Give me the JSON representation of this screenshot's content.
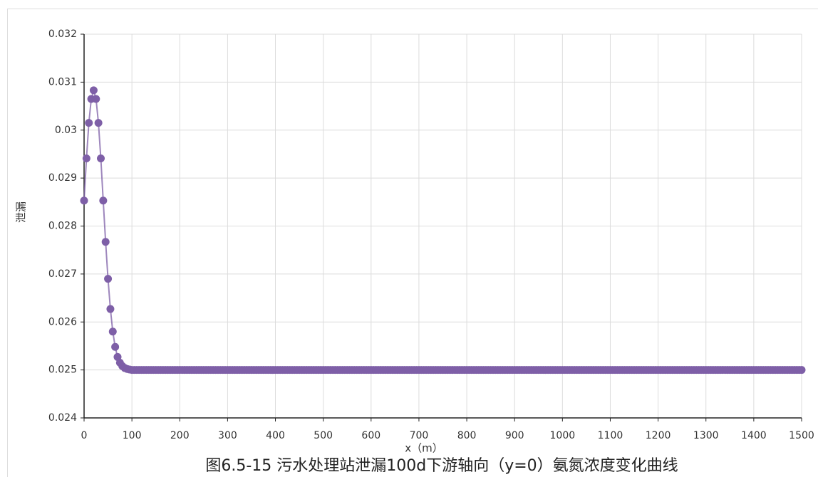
{
  "chart_data": {
    "type": "scatter_line",
    "y_label": "泄漏",
    "x_label": "x（m）",
    "caption": "图6.5-15  污水处理站泄漏100d下游轴向（y=0）氨氮浓度变化曲线",
    "color": "#7e5fa7",
    "grid": true,
    "xlim": [
      0,
      1500
    ],
    "xticks": [
      0,
      100,
      200,
      300,
      400,
      500,
      600,
      700,
      800,
      900,
      1000,
      1100,
      1200,
      1300,
      1400,
      1500
    ],
    "ylim": [
      0.024,
      0.032
    ],
    "yticks": [
      0.024,
      0.025,
      0.026,
      0.027,
      0.028,
      0.029,
      0.03,
      0.031,
      0.032
    ],
    "x": [
      0,
      5,
      10,
      15,
      20,
      25,
      30,
      35,
      40,
      45,
      50,
      55,
      60,
      65,
      70,
      75,
      80,
      85,
      90,
      95,
      100,
      105,
      110,
      115,
      120,
      125,
      130,
      135,
      140,
      145,
      150,
      155,
      160,
      165,
      170,
      175,
      180,
      185,
      190,
      195,
      200,
      205,
      210,
      215,
      220,
      225,
      230,
      235,
      240,
      245,
      250,
      255,
      260,
      265,
      270,
      275,
      280,
      285,
      290,
      295,
      300,
      305,
      310,
      315,
      320,
      325,
      330,
      335,
      340,
      345,
      350,
      355,
      360,
      365,
      370,
      375,
      380,
      385,
      390,
      395,
      400,
      405,
      410,
      415,
      420,
      425,
      430,
      435,
      440,
      445,
      450,
      455,
      460,
      465,
      470,
      475,
      480,
      485,
      490,
      495,
      500,
      505,
      510,
      515,
      520,
      525,
      530,
      535,
      540,
      545,
      550,
      555,
      560,
      565,
      570,
      575,
      580,
      585,
      590,
      595,
      600,
      605,
      610,
      615,
      620,
      625,
      630,
      635,
      640,
      645,
      650,
      655,
      660,
      665,
      670,
      675,
      680,
      685,
      690,
      695,
      700,
      705,
      710,
      715,
      720,
      725,
      730,
      735,
      740,
      745,
      750,
      755,
      760,
      765,
      770,
      775,
      780,
      785,
      790,
      795,
      800,
      805,
      810,
      815,
      820,
      825,
      830,
      835,
      840,
      845,
      850,
      855,
      860,
      865,
      870,
      875,
      880,
      885,
      890,
      895,
      900,
      905,
      910,
      915,
      920,
      925,
      930,
      935,
      940,
      945,
      950,
      955,
      960,
      965,
      970,
      975,
      980,
      985,
      990,
      995,
      1000,
      1005,
      1010,
      1015,
      1020,
      1025,
      1030,
      1035,
      1040,
      1045,
      1050,
      1055,
      1060,
      1065,
      1070,
      1075,
      1080,
      1085,
      1090,
      1095,
      1100,
      1105,
      1110,
      1115,
      1120,
      1125,
      1130,
      1135,
      1140,
      1145,
      1150,
      1155,
      1160,
      1165,
      1170,
      1175,
      1180,
      1185,
      1190,
      1195,
      1200,
      1205,
      1210,
      1215,
      1220,
      1225,
      1230,
      1235,
      1240,
      1245,
      1250,
      1255,
      1260,
      1265,
      1270,
      1275,
      1280,
      1285,
      1290,
      1295,
      1300,
      1305,
      1310,
      1315,
      1320,
      1325,
      1330,
      1335,
      1340,
      1345,
      1350,
      1355,
      1360,
      1365,
      1370,
      1375,
      1380,
      1385,
      1390,
      1395,
      1400,
      1405,
      1410,
      1415,
      1420,
      1425,
      1430,
      1435,
      1440,
      1445,
      1450,
      1455,
      1460,
      1465,
      1470,
      1475,
      1480,
      1485,
      1490,
      1495,
      1500
    ],
    "values": [
      0.02853,
      0.02941,
      0.03015,
      0.03065,
      0.03083,
      0.03065,
      0.03015,
      0.02941,
      0.02853,
      0.02767,
      0.0269,
      0.02627,
      0.0258,
      0.02548,
      0.02527,
      0.02515,
      0.02508,
      0.02504,
      0.02502,
      0.02501,
      0.025,
      0.025,
      0.025,
      0.025,
      0.025,
      0.025,
      0.025,
      0.025,
      0.025,
      0.025,
      0.025,
      0.025,
      0.025,
      0.025,
      0.025,
      0.025,
      0.025,
      0.025,
      0.025,
      0.025,
      0.025,
      0.025,
      0.025,
      0.025,
      0.025,
      0.025,
      0.025,
      0.025,
      0.025,
      0.025,
      0.025,
      0.025,
      0.025,
      0.025,
      0.025,
      0.025,
      0.025,
      0.025,
      0.025,
      0.025,
      0.025,
      0.025,
      0.025,
      0.025,
      0.025,
      0.025,
      0.025,
      0.025,
      0.025,
      0.025,
      0.025,
      0.025,
      0.025,
      0.025,
      0.025,
      0.025,
      0.025,
      0.025,
      0.025,
      0.025,
      0.025,
      0.025,
      0.025,
      0.025,
      0.025,
      0.025,
      0.025,
      0.025,
      0.025,
      0.025,
      0.025,
      0.025,
      0.025,
      0.025,
      0.025,
      0.025,
      0.025,
      0.025,
      0.025,
      0.025,
      0.025,
      0.025,
      0.025,
      0.025,
      0.025,
      0.025,
      0.025,
      0.025,
      0.025,
      0.025,
      0.025,
      0.025,
      0.025,
      0.025,
      0.025,
      0.025,
      0.025,
      0.025,
      0.025,
      0.025,
      0.025,
      0.025,
      0.025,
      0.025,
      0.025,
      0.025,
      0.025,
      0.025,
      0.025,
      0.025,
      0.025,
      0.025,
      0.025,
      0.025,
      0.025,
      0.025,
      0.025,
      0.025,
      0.025,
      0.025,
      0.025,
      0.025,
      0.025,
      0.025,
      0.025,
      0.025,
      0.025,
      0.025,
      0.025,
      0.025,
      0.025,
      0.025,
      0.025,
      0.025,
      0.025,
      0.025,
      0.025,
      0.025,
      0.025,
      0.025,
      0.025,
      0.025,
      0.025,
      0.025,
      0.025,
      0.025,
      0.025,
      0.025,
      0.025,
      0.025,
      0.025,
      0.025,
      0.025,
      0.025,
      0.025,
      0.025,
      0.025,
      0.025,
      0.025,
      0.025,
      0.025,
      0.025,
      0.025,
      0.025,
      0.025,
      0.025,
      0.025,
      0.025,
      0.025,
      0.025,
      0.025,
      0.025,
      0.025,
      0.025,
      0.025,
      0.025,
      0.025,
      0.025,
      0.025,
      0.025,
      0.025,
      0.025,
      0.025,
      0.025,
      0.025,
      0.025,
      0.025,
      0.025,
      0.025,
      0.025,
      0.025,
      0.025,
      0.025,
      0.025,
      0.025,
      0.025,
      0.025,
      0.025,
      0.025,
      0.025,
      0.025,
      0.025,
      0.025,
      0.025,
      0.025,
      0.025,
      0.025,
      0.025,
      0.025,
      0.025,
      0.025,
      0.025,
      0.025,
      0.025,
      0.025,
      0.025,
      0.025,
      0.025,
      0.025,
      0.025,
      0.025,
      0.025,
      0.025,
      0.025,
      0.025,
      0.025,
      0.025,
      0.025,
      0.025,
      0.025,
      0.025,
      0.025,
      0.025,
      0.025,
      0.025,
      0.025,
      0.025,
      0.025,
      0.025,
      0.025,
      0.025,
      0.025,
      0.025,
      0.025,
      0.025,
      0.025,
      0.025,
      0.025,
      0.025,
      0.025,
      0.025,
      0.025,
      0.025,
      0.025,
      0.025,
      0.025,
      0.025,
      0.025,
      0.025,
      0.025,
      0.025,
      0.025,
      0.025,
      0.025,
      0.025,
      0.025,
      0.025,
      0.025,
      0.025,
      0.025,
      0.025,
      0.025,
      0.025,
      0.025,
      0.025,
      0.025,
      0.025,
      0.025,
      0.025,
      0.025,
      0.025
    ]
  }
}
